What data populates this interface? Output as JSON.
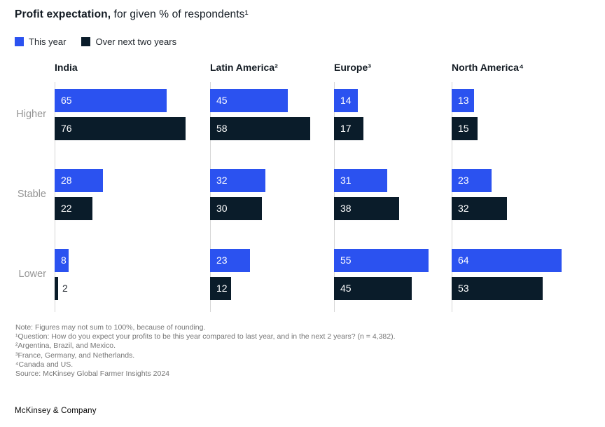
{
  "title": {
    "lead": "Profit expectation,",
    "rest": " for given % of respondents¹"
  },
  "legend": {
    "items": [
      {
        "label": "This year",
        "key": "this_year"
      },
      {
        "label": "Over next two years",
        "key": "next_two_years"
      }
    ]
  },
  "colors": {
    "this_year": "#2b52f0",
    "next_two_years": "#0a1c2a",
    "axis_line": "#d6d6d6"
  },
  "chart_data": {
    "type": "bar",
    "orientation": "horizontal",
    "value_unit": "% of respondents",
    "value_range": [
      0,
      100
    ],
    "row_categories": [
      "Higher",
      "Stable",
      "Lower"
    ],
    "series_names": [
      "This year",
      "Over next two years"
    ],
    "groups": [
      {
        "label": "India",
        "series": [
          {
            "name": "This year",
            "values": [
              65,
              28,
              8
            ]
          },
          {
            "name": "Over next two years",
            "values": [
              76,
              22,
              2
            ]
          }
        ]
      },
      {
        "label": "Latin America²",
        "series": [
          {
            "name": "This year",
            "values": [
              45,
              32,
              23
            ]
          },
          {
            "name": "Over next two years",
            "values": [
              58,
              30,
              12
            ]
          }
        ]
      },
      {
        "label": "Europe³",
        "series": [
          {
            "name": "This year",
            "values": [
              14,
              31,
              55
            ]
          },
          {
            "name": "Over next two years",
            "values": [
              17,
              38,
              45
            ]
          }
        ]
      },
      {
        "label": "North America⁴",
        "series": [
          {
            "name": "This year",
            "values": [
              13,
              23,
              64
            ]
          },
          {
            "name": "Over next two years",
            "values": [
              15,
              32,
              53
            ]
          }
        ]
      }
    ]
  },
  "notes": [
    "Note: Figures may not sum to 100%, because of rounding.",
    "¹Question: How do you expect your profits to be this year compared to last year, and in the next 2 years? (n = 4,382).",
    "²Argentina, Brazil, and Mexico.",
    "³France, Germany, and Netherlands.",
    "⁴Canada and US.",
    "Source: McKinsey Global Farmer Insights 2024"
  ],
  "footer": {
    "brand": "McKinsey & Company"
  }
}
